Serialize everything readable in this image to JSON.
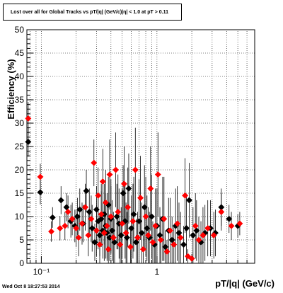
{
  "chart_data": {
    "type": "scatter",
    "title": "Lost over all for Global Tracks vs pT/|q| (GeV/c)|η| < 1.0 at pT > 0.11",
    "xlabel": "pT/|q| (GeV/c)",
    "ylabel": "Efficiency (%)",
    "xscale": "log",
    "xlim": [
      0.075,
      7
    ],
    "ylim": [
      0,
      50
    ],
    "grid": true,
    "x_tick_labels": [
      "10⁻¹",
      "1"
    ],
    "y_tick_labels": [
      "0",
      "5",
      "10",
      "15",
      "20",
      "25",
      "30",
      "35",
      "40",
      "45",
      "50"
    ],
    "series": [
      {
        "color": "#000000",
        "marker": "diamond",
        "points": [
          [
            0.077,
            26.0,
            3.2
          ],
          [
            0.098,
            15.2,
            2.6
          ],
          [
            0.125,
            9.8,
            2.2
          ],
          [
            0.148,
            13.5,
            3.0
          ],
          [
            0.165,
            12.0,
            3.0
          ],
          [
            0.18,
            9.0,
            3.5
          ],
          [
            0.195,
            8.0,
            3.5
          ],
          [
            0.205,
            10.0,
            4.0
          ],
          [
            0.215,
            11.5,
            4.5
          ],
          [
            0.23,
            8.5,
            4.0
          ],
          [
            0.245,
            15.5,
            4.5
          ],
          [
            0.26,
            11.0,
            5.0
          ],
          [
            0.275,
            7.5,
            5.0
          ],
          [
            0.29,
            4.5,
            4.0
          ],
          [
            0.3,
            11.5,
            5.0
          ],
          [
            0.31,
            9.0,
            6.0
          ],
          [
            0.32,
            6.0,
            4.5
          ],
          [
            0.33,
            9.5,
            6.0
          ],
          [
            0.34,
            7.0,
            6.0
          ],
          [
            0.35,
            10.5,
            6.5
          ],
          [
            0.36,
            8.0,
            7.0
          ],
          [
            0.37,
            6.5,
            6.0
          ],
          [
            0.38,
            12.5,
            6.0
          ],
          [
            0.39,
            5.5,
            5.0
          ],
          [
            0.4,
            9.5,
            7.0
          ],
          [
            0.41,
            7.0,
            6.5
          ],
          [
            0.43,
            4.5,
            5.0
          ],
          [
            0.45,
            10.0,
            7.0
          ],
          [
            0.47,
            8.5,
            7.5
          ],
          [
            0.49,
            6.0,
            6.0
          ],
          [
            0.51,
            15.0,
            6.0
          ],
          [
            0.53,
            9.0,
            8.0
          ],
          [
            0.55,
            5.5,
            5.5
          ],
          [
            0.57,
            16.0,
            7.5
          ],
          [
            0.6,
            7.5,
            7.0
          ],
          [
            0.63,
            10.5,
            8.0
          ],
          [
            0.66,
            4.5,
            5.0
          ],
          [
            0.7,
            9.0,
            9.0
          ],
          [
            0.74,
            6.5,
            6.5
          ],
          [
            0.78,
            12.0,
            9.0
          ],
          [
            0.82,
            7.5,
            7.0
          ],
          [
            0.86,
            5.5,
            5.5
          ],
          [
            0.9,
            10.0,
            9.0
          ],
          [
            0.95,
            4.0,
            4.0
          ],
          [
            1.0,
            8.0,
            8.0
          ],
          [
            1.06,
            6.0,
            6.0
          ],
          [
            1.12,
            9.5,
            9.0
          ],
          [
            1.18,
            3.5,
            3.5
          ],
          [
            1.26,
            7.0,
            7.0
          ],
          [
            1.35,
            5.0,
            5.0
          ],
          [
            1.45,
            8.0,
            8.0
          ],
          [
            1.55,
            6.5,
            6.5
          ],
          [
            1.7,
            4.0,
            4.0
          ],
          [
            1.8,
            7.5,
            7.0
          ],
          [
            1.9,
            13.5,
            8.0
          ],
          [
            2.05,
            6.0,
            6.0
          ],
          [
            2.2,
            7.0,
            6.5
          ],
          [
            2.4,
            4.5,
            4.5
          ],
          [
            2.6,
            6.5,
            6.0
          ],
          [
            2.9,
            7.5,
            6.0
          ],
          [
            3.2,
            6.5,
            5.0
          ],
          [
            3.6,
            12.0,
            4.0
          ],
          [
            4.2,
            9.5,
            3.0
          ],
          [
            5.0,
            8.0,
            2.5
          ]
        ]
      },
      {
        "color": "#ff0000",
        "marker": "diamond",
        "points": [
          [
            0.077,
            31.0,
            3.5
          ],
          [
            0.098,
            18.5,
            2.8
          ],
          [
            0.122,
            6.8,
            2.2
          ],
          [
            0.145,
            7.5,
            2.6
          ],
          [
            0.16,
            8.0,
            3.0
          ],
          [
            0.17,
            11.0,
            3.5
          ],
          [
            0.185,
            9.5,
            3.5
          ],
          [
            0.2,
            7.5,
            4.0
          ],
          [
            0.21,
            5.5,
            4.0
          ],
          [
            0.225,
            8.5,
            4.5
          ],
          [
            0.24,
            12.0,
            5.0
          ],
          [
            0.255,
            6.0,
            4.5
          ],
          [
            0.27,
            9.5,
            5.0
          ],
          [
            0.285,
            21.5,
            5.0
          ],
          [
            0.3,
            7.0,
            5.5
          ],
          [
            0.31,
            14.5,
            6.0
          ],
          [
            0.32,
            4.0,
            4.0
          ],
          [
            0.33,
            10.5,
            6.5
          ],
          [
            0.34,
            17.5,
            7.0
          ],
          [
            0.35,
            6.5,
            6.0
          ],
          [
            0.36,
            13.0,
            7.0
          ],
          [
            0.37,
            8.0,
            7.0
          ],
          [
            0.38,
            3.0,
            3.0
          ],
          [
            0.39,
            19.0,
            7.5
          ],
          [
            0.4,
            10.0,
            8.0
          ],
          [
            0.42,
            5.5,
            5.5
          ],
          [
            0.44,
            20.0,
            8.0
          ],
          [
            0.46,
            11.0,
            8.0
          ],
          [
            0.48,
            4.0,
            4.0
          ],
          [
            0.5,
            8.5,
            7.5
          ],
          [
            0.52,
            17.0,
            8.0
          ],
          [
            0.54,
            6.5,
            6.5
          ],
          [
            0.56,
            12.0,
            8.5
          ],
          [
            0.59,
            3.5,
            3.5
          ],
          [
            0.62,
            9.0,
            8.0
          ],
          [
            0.65,
            20.0,
            9.0
          ],
          [
            0.68,
            5.5,
            5.5
          ],
          [
            0.72,
            14.0,
            9.0
          ],
          [
            0.76,
            3.0,
            3.0
          ],
          [
            0.8,
            10.0,
            8.5
          ],
          [
            0.84,
            6.0,
            6.0
          ],
          [
            0.88,
            16.0,
            9.0
          ],
          [
            0.92,
            4.5,
            4.5
          ],
          [
            0.97,
            8.0,
            8.0
          ],
          [
            1.02,
            19.0,
            9.0
          ],
          [
            1.08,
            5.0,
            5.0
          ],
          [
            1.15,
            9.5,
            9.0
          ],
          [
            1.22,
            2.5,
            2.5
          ],
          [
            1.3,
            7.0,
            7.0
          ],
          [
            1.4,
            4.0,
            4.0
          ],
          [
            1.5,
            8.5,
            8.0
          ],
          [
            1.6,
            5.5,
            5.5
          ],
          [
            1.75,
            14.5,
            8.0
          ],
          [
            1.85,
            1.5,
            1.5
          ],
          [
            2.0,
            1.0,
            1.0
          ],
          [
            2.15,
            8.0,
            7.0
          ],
          [
            2.3,
            5.0,
            5.0
          ],
          [
            2.5,
            6.0,
            6.0
          ],
          [
            2.75,
            7.5,
            6.0
          ],
          [
            3.1,
            6.0,
            5.0
          ],
          [
            3.6,
            11.0,
            4.0
          ],
          [
            4.4,
            8.0,
            3.0
          ],
          [
            5.2,
            8.5,
            2.5
          ]
        ]
      }
    ]
  },
  "footer": {
    "timestamp": "Wed Oct  8 18:27:53 2014"
  }
}
